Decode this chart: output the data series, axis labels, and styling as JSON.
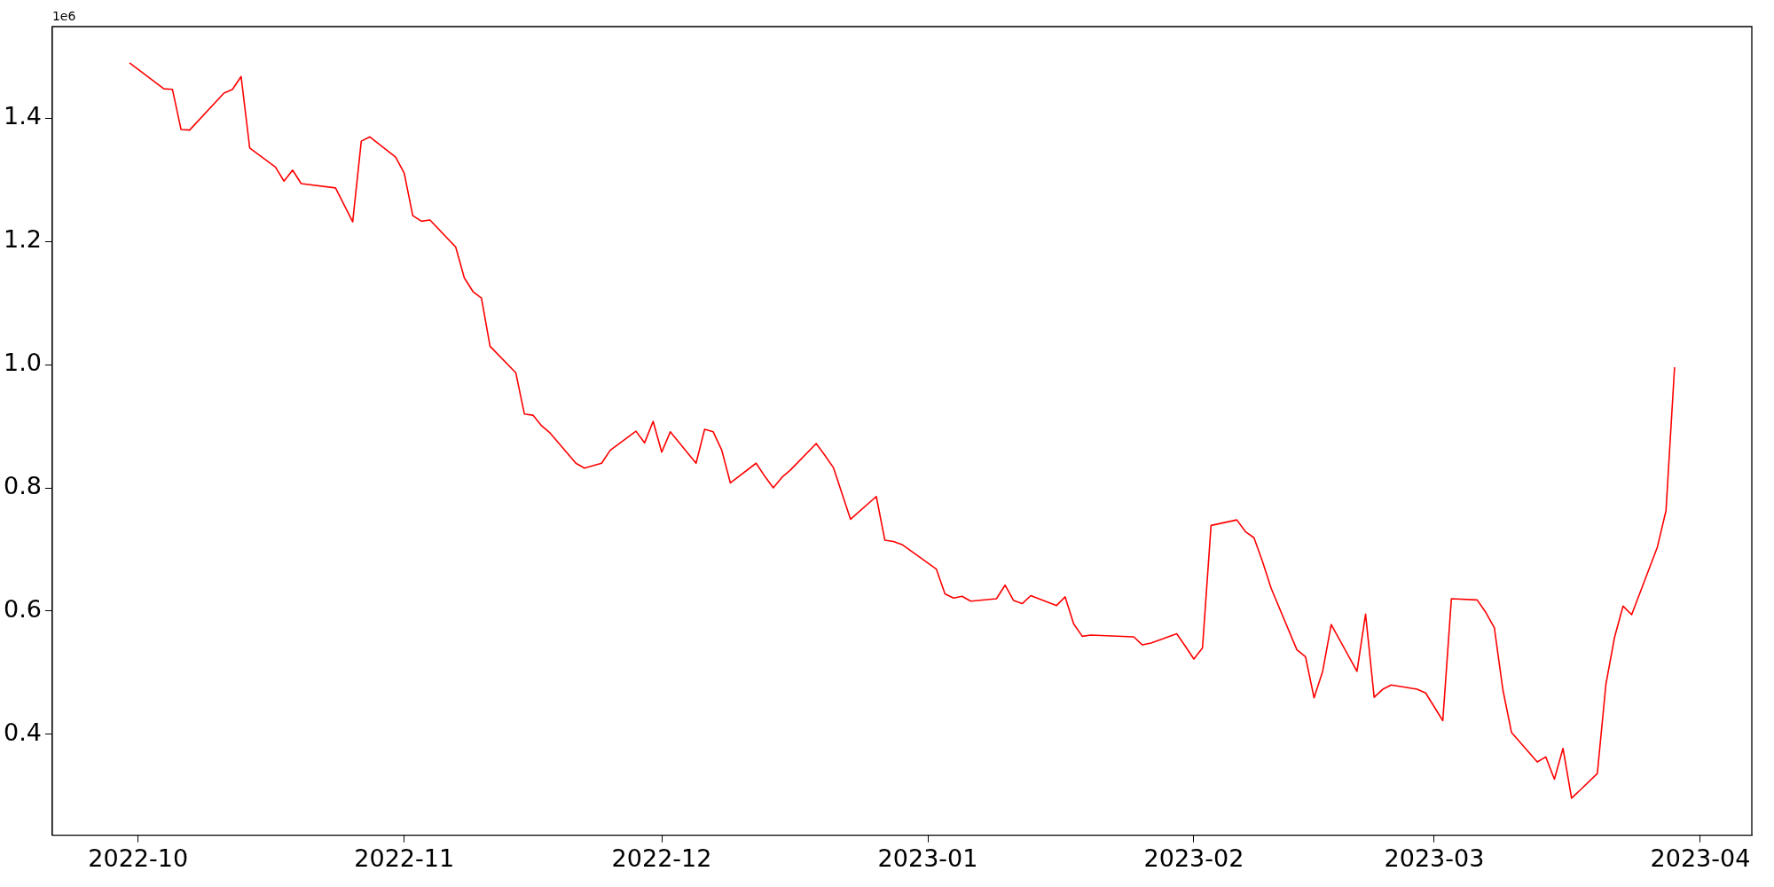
{
  "chart_data": {
    "type": "line",
    "x": [
      "2022-09-30",
      "2022-10-04",
      "2022-10-05",
      "2022-10-06",
      "2022-10-07",
      "2022-10-11",
      "2022-10-12",
      "2022-10-13",
      "2022-10-14",
      "2022-10-17",
      "2022-10-18",
      "2022-10-19",
      "2022-10-20",
      "2022-10-24",
      "2022-10-26",
      "2022-10-27",
      "2022-10-28",
      "2022-10-31",
      "2022-11-01",
      "2022-11-02",
      "2022-11-03",
      "2022-11-04",
      "2022-11-07",
      "2022-11-08",
      "2022-11-09",
      "2022-11-10",
      "2022-11-11",
      "2022-11-14",
      "2022-11-15",
      "2022-11-16",
      "2022-11-17",
      "2022-11-18",
      "2022-11-21",
      "2022-11-22",
      "2022-11-24",
      "2022-11-25",
      "2022-11-28",
      "2022-11-29",
      "2022-11-30",
      "2022-12-01",
      "2022-12-02",
      "2022-12-05",
      "2022-12-06",
      "2022-12-07",
      "2022-12-08",
      "2022-12-09",
      "2022-12-12",
      "2022-12-13",
      "2022-12-14",
      "2022-12-15",
      "2022-12-16",
      "2022-12-19",
      "2022-12-20",
      "2022-12-21",
      "2022-12-23",
      "2022-12-26",
      "2022-12-27",
      "2022-12-28",
      "2022-12-29",
      "2023-01-02",
      "2023-01-03",
      "2023-01-04",
      "2023-01-05",
      "2023-01-06",
      "2023-01-09",
      "2023-01-10",
      "2023-01-11",
      "2023-01-12",
      "2023-01-13",
      "2023-01-16",
      "2023-01-17",
      "2023-01-18",
      "2023-01-19",
      "2023-01-20",
      "2023-01-25",
      "2023-01-26",
      "2023-01-27",
      "2023-01-30",
      "2023-01-31",
      "2023-02-01",
      "2023-02-02",
      "2023-02-03",
      "2023-02-06",
      "2023-02-07",
      "2023-02-08",
      "2023-02-09",
      "2023-02-10",
      "2023-02-13",
      "2023-02-14",
      "2023-02-15",
      "2023-02-16",
      "2023-02-17",
      "2023-02-20",
      "2023-02-21",
      "2023-02-22",
      "2023-02-23",
      "2023-02-24",
      "2023-02-27",
      "2023-02-28",
      "2023-03-02",
      "2023-03-03",
      "2023-03-06",
      "2023-03-07",
      "2023-03-08",
      "2023-03-09",
      "2023-03-10",
      "2023-03-13",
      "2023-03-14",
      "2023-03-15",
      "2023-03-16",
      "2023-03-17",
      "2023-03-20",
      "2023-03-21",
      "2023-03-22",
      "2023-03-23",
      "2023-03-24",
      "2023-03-27",
      "2023-03-28",
      "2023-03-29"
    ],
    "series": [
      {
        "color": "#ff0000",
        "values": [
          1.49,
          1.448,
          1.447,
          1.382,
          1.381,
          1.441,
          1.447,
          1.468,
          1.352,
          1.321,
          1.298,
          1.316,
          1.294,
          1.287,
          1.232,
          1.363,
          1.37,
          1.337,
          1.311,
          1.242,
          1.233,
          1.235,
          1.191,
          1.141,
          1.119,
          1.108,
          1.03,
          0.987,
          0.92,
          0.918,
          0.901,
          0.889,
          0.84,
          0.832,
          0.84,
          0.861,
          0.892,
          0.873,
          0.908,
          0.858,
          0.891,
          0.84,
          0.895,
          0.891,
          0.861,
          0.808,
          0.84,
          0.819,
          0.8,
          0.817,
          0.829,
          0.872,
          0.853,
          0.833,
          0.749,
          0.786,
          0.715,
          0.713,
          0.708,
          0.668,
          0.628,
          0.621,
          0.624,
          0.616,
          0.62,
          0.642,
          0.617,
          0.612,
          0.625,
          0.609,
          0.623,
          0.579,
          0.559,
          0.561,
          0.558,
          0.545,
          0.548,
          0.563,
          0.543,
          0.522,
          0.54,
          0.739,
          0.748,
          0.729,
          0.719,
          0.68,
          0.637,
          0.537,
          0.526,
          0.459,
          0.502,
          0.578,
          0.502,
          0.595,
          0.46,
          0.473,
          0.48,
          0.473,
          0.467,
          0.422,
          0.62,
          0.618,
          0.598,
          0.573,
          0.472,
          0.403,
          0.355,
          0.363,
          0.327,
          0.377,
          0.296,
          0.336,
          0.481,
          0.557,
          0.608,
          0.594,
          0.704,
          0.763,
          0.996
        ]
      }
    ],
    "xlim": [
      "2022-09-21",
      "2023-04-07"
    ],
    "xticks": [
      {
        "value": "2022-10-01",
        "label": "2022-10"
      },
      {
        "value": "2022-11-01",
        "label": "2022-11"
      },
      {
        "value": "2022-12-01",
        "label": "2022-12"
      },
      {
        "value": "2023-01-01",
        "label": "2023-01"
      },
      {
        "value": "2023-02-01",
        "label": "2023-02"
      },
      {
        "value": "2023-03-01",
        "label": "2023-03"
      },
      {
        "value": "2023-04-01",
        "label": "2023-04"
      }
    ],
    "ylim": [
      0.236,
      1.549
    ],
    "yticks": [
      0.4,
      0.6,
      0.8,
      {
        "value": 1,
        "label": "1.0"
      },
      1.2,
      1.4
    ],
    "annotations": [
      "1e6"
    ]
  }
}
